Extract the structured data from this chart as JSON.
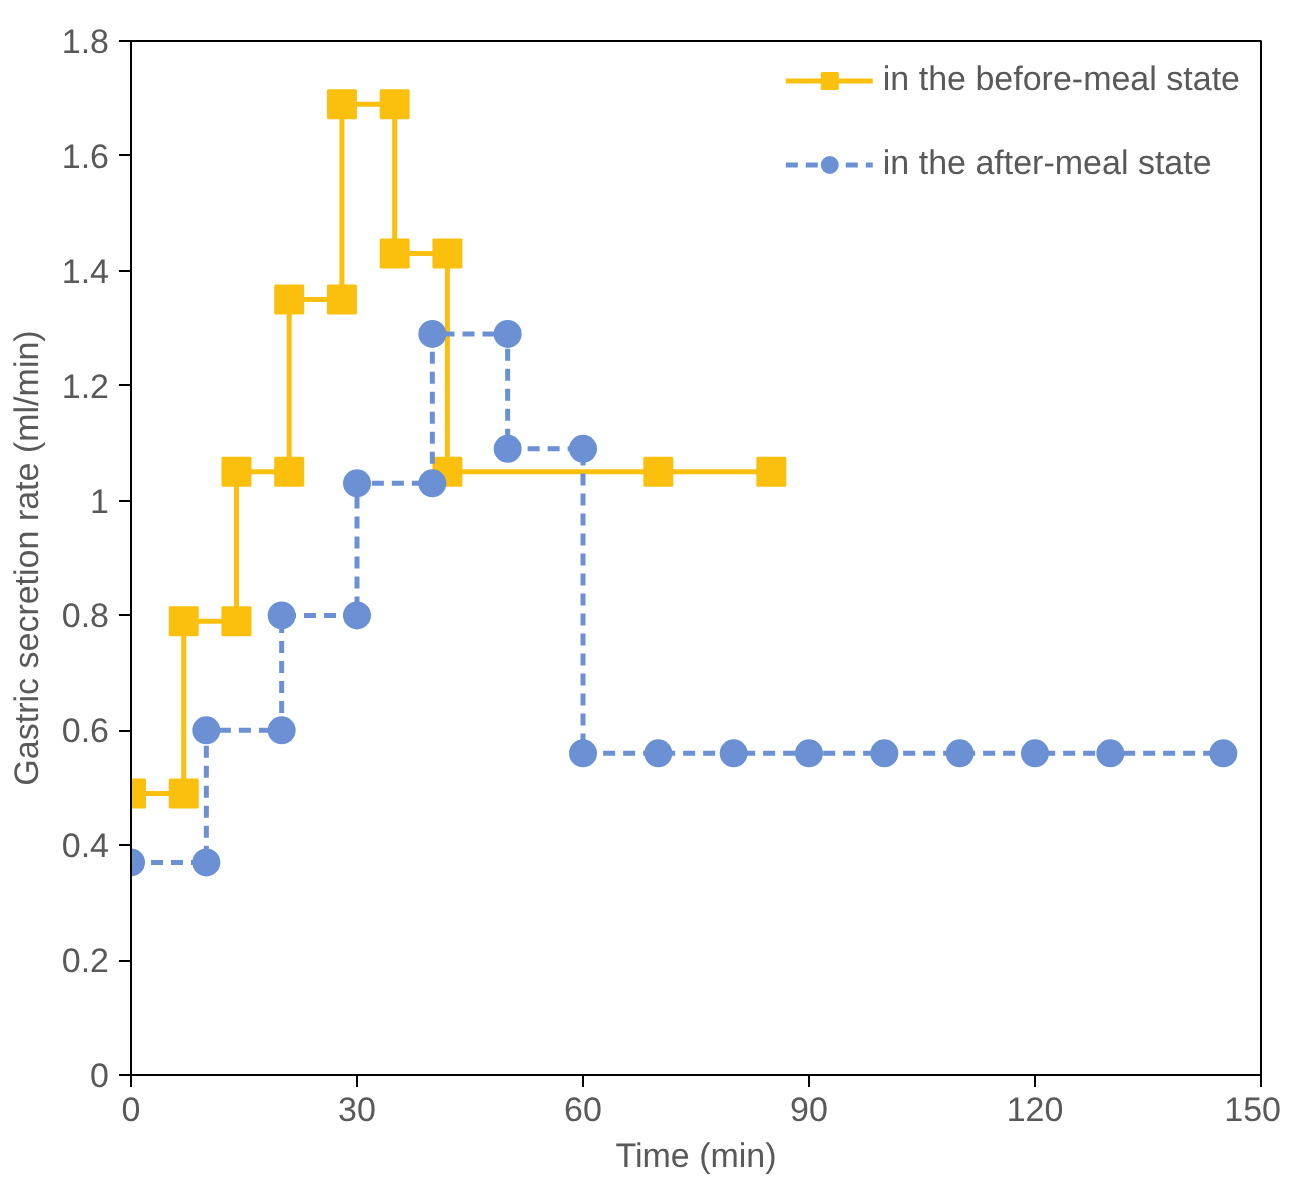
{
  "chart_data": {
    "type": "line",
    "xlabel": "Time (min)",
    "ylabel": "Gastric secretion rate (ml/min)",
    "xlim": [
      0,
      150
    ],
    "xticks": [
      0,
      30,
      60,
      90,
      120,
      150
    ],
    "ylim": [
      0,
      1.8
    ],
    "yticks": [
      0,
      0.2,
      0.4,
      0.6,
      0.8,
      1,
      1.2,
      1.4,
      1.6,
      1.8
    ],
    "grid": false,
    "legend": "top right",
    "series": [
      {
        "name": "in the before-meal state",
        "color": "#fbbf0e",
        "marker": "square",
        "line_style": "solid",
        "x": [
          0,
          7,
          7,
          14,
          14,
          21,
          21,
          28,
          28,
          35,
          35,
          42,
          42,
          70,
          85
        ],
        "values": [
          0.49,
          0.49,
          0.79,
          0.79,
          1.05,
          1.05,
          1.35,
          1.35,
          1.69,
          1.69,
          1.43,
          1.43,
          1.05,
          1.05,
          1.05
        ]
      },
      {
        "name": "in the after-meal state",
        "color": "#6b90d4",
        "marker": "circle",
        "line_style": "dashed",
        "x": [
          0,
          10,
          10,
          20,
          20,
          30,
          30,
          40,
          40,
          50,
          50,
          60,
          60,
          70,
          80,
          90,
          100,
          110,
          120,
          130,
          145
        ],
        "values": [
          0.37,
          0.37,
          0.6,
          0.6,
          0.8,
          0.8,
          1.03,
          1.03,
          1.29,
          1.29,
          1.09,
          1.09,
          0.56,
          0.56,
          0.56,
          0.56,
          0.56,
          0.56,
          0.56,
          0.56,
          0.56
        ]
      }
    ]
  }
}
